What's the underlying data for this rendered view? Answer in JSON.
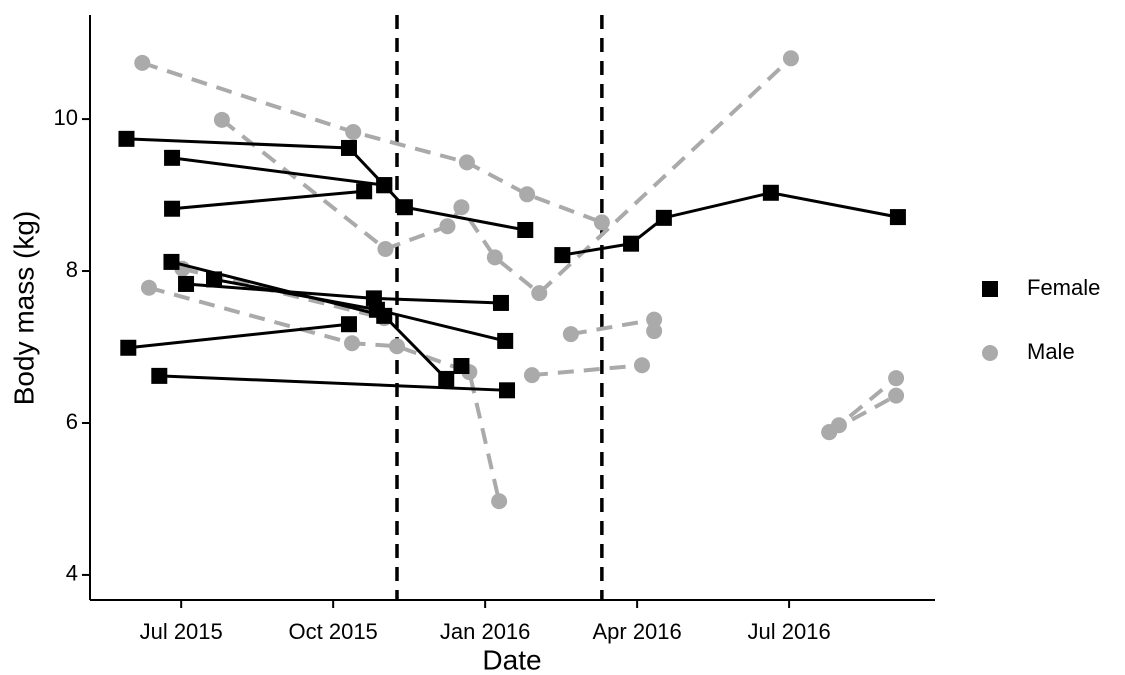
{
  "chart_data": {
    "type": "line",
    "xlabel": "Date",
    "ylabel": "Body mass (kg)",
    "xlim": [
      2015.35,
      2016.74
    ],
    "ylim": [
      3.67,
      11.37
    ],
    "xticks": [
      {
        "value": 2015.5,
        "label": "Jul 2015"
      },
      {
        "value": 2015.75,
        "label": "Oct 2015"
      },
      {
        "value": 2016.0,
        "label": "Jan 2016"
      },
      {
        "value": 2016.25,
        "label": "Apr 2016"
      },
      {
        "value": 2016.5,
        "label": "Jul 2016"
      }
    ],
    "yticks": [
      4,
      6,
      8,
      10
    ],
    "vlines": [
      2015.855,
      2016.192
    ],
    "legend": "right",
    "series": [
      {
        "name": "Female",
        "color": "#000000",
        "marker": "square",
        "dashed": false,
        "individuals": [
          {
            "x": [
              2015.41,
              2015.776,
              2015.834,
              2015.868,
              2016.066
            ],
            "values": [
              9.74,
              9.62,
              9.13,
              8.84,
              8.54
            ]
          },
          {
            "x": [
              2015.485,
              2015.834
            ],
            "values": [
              9.49,
              9.13
            ]
          },
          {
            "x": [
              2015.485,
              2015.801
            ],
            "values": [
              8.82,
              9.05
            ]
          },
          {
            "x": [
              2016.127,
              2016.24,
              2016.294,
              2016.47,
              2016.679
            ],
            "values": [
              8.21,
              8.36,
              8.7,
              9.03,
              8.71
            ]
          },
          {
            "x": [
              2015.484,
              2015.834,
              2015.936
            ],
            "values": [
              8.12,
              7.41,
              6.58
            ]
          },
          {
            "x": [
              2015.508,
              2015.817,
              2016.026
            ],
            "values": [
              7.83,
              7.64,
              7.58
            ]
          },
          {
            "x": [
              2015.554,
              2015.822,
              2016.033
            ],
            "values": [
              7.89,
              7.49,
              7.08
            ]
          },
          {
            "x": [
              2015.413,
              2015.776
            ],
            "values": [
              6.99,
              7.3
            ]
          },
          {
            "x": [
              2015.464,
              2016.036
            ],
            "values": [
              6.62,
              6.43
            ]
          },
          {
            "x": [
              2015.961
            ],
            "values": [
              6.75
            ]
          }
        ]
      },
      {
        "name": "Male",
        "color": "#aaaaaa",
        "marker": "circle",
        "dashed": true,
        "individuals": [
          {
            "x": [
              2015.436,
              2015.783,
              2015.97,
              2016.069,
              2016.192
            ],
            "values": [
              10.74,
              9.83,
              9.43,
              9.01,
              8.64
            ]
          },
          {
            "x": [
              2015.567,
              2015.836,
              2015.938,
              2015.961,
              2016.016,
              2016.089,
              2016.503
            ],
            "values": [
              9.99,
              8.29,
              8.59,
              8.84,
              8.18,
              7.71,
              10.8
            ]
          },
          {
            "x": [
              2015.447,
              2015.781,
              2015.855,
              2015.974,
              2016.023
            ],
            "values": [
              7.78,
              7.05,
              7.01,
              6.67,
              4.97
            ]
          },
          {
            "x": [
              2015.502,
              2015.834
            ],
            "values": [
              8.03,
              7.38
            ]
          },
          {
            "x": [
              2016.077,
              2016.258
            ],
            "values": [
              6.63,
              6.76
            ]
          },
          {
            "x": [
              2016.141,
              2016.278
            ],
            "values": [
              7.17,
              7.36
            ]
          },
          {
            "x": [
              2016.278
            ],
            "values": [
              7.21
            ]
          },
          {
            "x": [
              2016.566,
              2016.582,
              2016.676
            ],
            "values": [
              5.88,
              5.97,
              6.59
            ]
          },
          {
            "x": [
              2016.566,
              2016.676
            ],
            "values": [
              5.88,
              6.36
            ]
          }
        ]
      }
    ]
  }
}
